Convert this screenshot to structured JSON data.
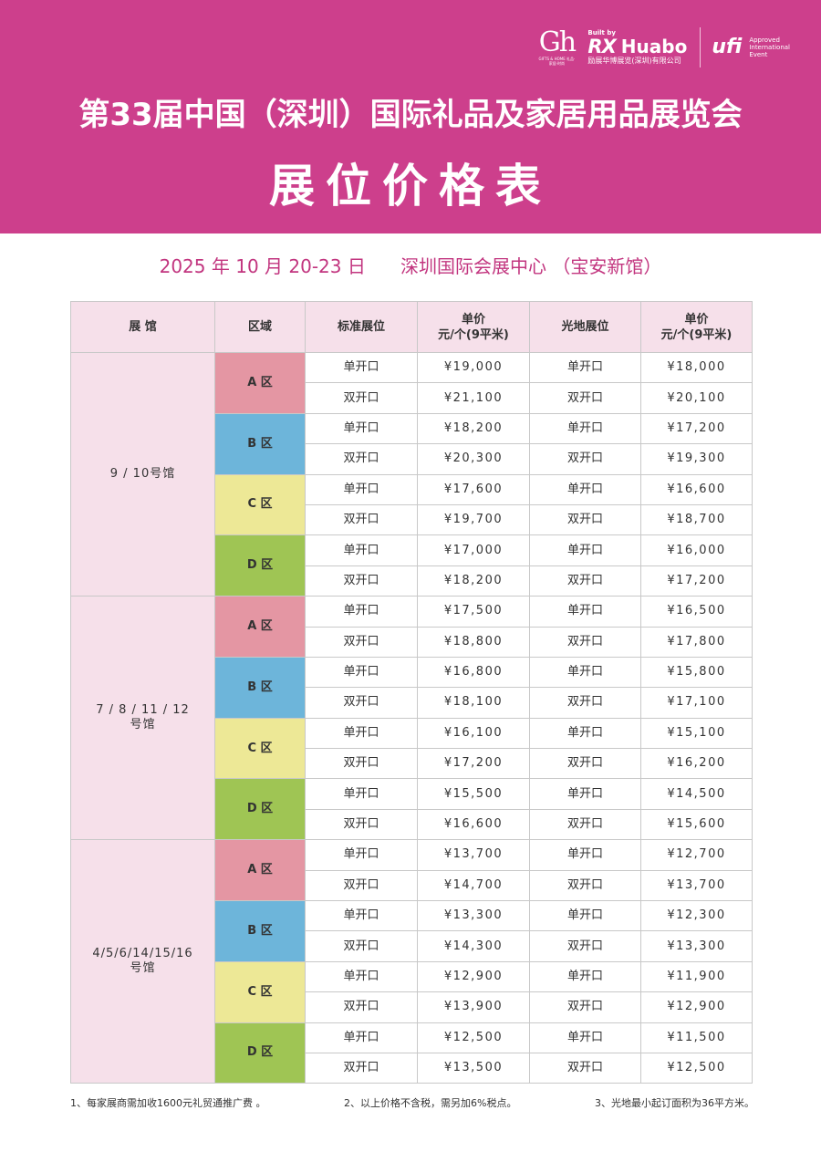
{
  "header": {
    "logo_gh": {
      "mark": "Gh",
      "small": "GIFTS & HOME 礼品·家居·时尚"
    },
    "logo_rx": {
      "built_by": "Built by",
      "rx": "RX",
      "huabo": "Huabo",
      "sub": "励展华博展览(深圳)有限公司"
    },
    "logo_ufi": {
      "mark": "ufi",
      "line1": "Approved",
      "line2": "International",
      "line3": "Event"
    },
    "title": "第33届中国（深圳）国际礼品及家居用品展览会",
    "subtitle": "展位价格表"
  },
  "info": {
    "date": "2025 年 10 月 20-23 日",
    "venue": "深圳国际会展中心 （宝安新馆）"
  },
  "table": {
    "headers": {
      "hall": "展 馆",
      "zone": "区域",
      "standard": "标准展位",
      "standard_price_line1": "单价",
      "standard_price_line2": "元/个(9平米)",
      "space": "光地展位",
      "space_price_line1": "单价",
      "space_price_line2": "元/个(9平米)"
    },
    "halls": [
      {
        "name_line1": "9 / 10号馆",
        "name_line2": "",
        "zones": [
          {
            "label": "A 区",
            "rows": [
              {
                "std": "单开口",
                "std_price": "¥19,000",
                "space": "单开口",
                "space_price": "¥18,000"
              },
              {
                "std": "双开口",
                "std_price": "¥21,100",
                "space": "双开口",
                "space_price": "¥20,100"
              }
            ]
          },
          {
            "label": "B 区",
            "rows": [
              {
                "std": "单开口",
                "std_price": "¥18,200",
                "space": "单开口",
                "space_price": "¥17,200"
              },
              {
                "std": "双开口",
                "std_price": "¥20,300",
                "space": "双开口",
                "space_price": "¥19,300"
              }
            ]
          },
          {
            "label": "C 区",
            "rows": [
              {
                "std": "单开口",
                "std_price": "¥17,600",
                "space": "单开口",
                "space_price": "¥16,600"
              },
              {
                "std": "双开口",
                "std_price": "¥19,700",
                "space": "双开口",
                "space_price": "¥18,700"
              }
            ]
          },
          {
            "label": "D 区",
            "rows": [
              {
                "std": "单开口",
                "std_price": "¥17,000",
                "space": "单开口",
                "space_price": "¥16,000"
              },
              {
                "std": "双开口",
                "std_price": "¥18,200",
                "space": "双开口",
                "space_price": "¥17,200"
              }
            ]
          }
        ]
      },
      {
        "name_line1": "7 / 8 / 11 / 12",
        "name_line2": "号馆",
        "zones": [
          {
            "label": "A 区",
            "rows": [
              {
                "std": "单开口",
                "std_price": "¥17,500",
                "space": "单开口",
                "space_price": "¥16,500"
              },
              {
                "std": "双开口",
                "std_price": "¥18,800",
                "space": "双开口",
                "space_price": "¥17,800"
              }
            ]
          },
          {
            "label": "B 区",
            "rows": [
              {
                "std": "单开口",
                "std_price": "¥16,800",
                "space": "单开口",
                "space_price": "¥15,800"
              },
              {
                "std": "双开口",
                "std_price": "¥18,100",
                "space": "双开口",
                "space_price": "¥17,100"
              }
            ]
          },
          {
            "label": "C 区",
            "rows": [
              {
                "std": "单开口",
                "std_price": "¥16,100",
                "space": "单开口",
                "space_price": "¥15,100"
              },
              {
                "std": "双开口",
                "std_price": "¥17,200",
                "space": "双开口",
                "space_price": "¥16,200"
              }
            ]
          },
          {
            "label": "D 区",
            "rows": [
              {
                "std": "单开口",
                "std_price": "¥15,500",
                "space": "单开口",
                "space_price": "¥14,500"
              },
              {
                "std": "双开口",
                "std_price": "¥16,600",
                "space": "双开口",
                "space_price": "¥15,600"
              }
            ]
          }
        ]
      },
      {
        "name_line1": "4/5/6/14/15/16",
        "name_line2": "号馆",
        "zones": [
          {
            "label": "A 区",
            "rows": [
              {
                "std": "单开口",
                "std_price": "¥13,700",
                "space": "单开口",
                "space_price": "¥12,700"
              },
              {
                "std": "双开口",
                "std_price": "¥14,700",
                "space": "双开口",
                "space_price": "¥13,700"
              }
            ]
          },
          {
            "label": "B 区",
            "rows": [
              {
                "std": "单开口",
                "std_price": "¥13,300",
                "space": "单开口",
                "space_price": "¥12,300"
              },
              {
                "std": "双开口",
                "std_price": "¥14,300",
                "space": "双开口",
                "space_price": "¥13,300"
              }
            ]
          },
          {
            "label": "C 区",
            "rows": [
              {
                "std": "单开口",
                "std_price": "¥12,900",
                "space": "单开口",
                "space_price": "¥11,900"
              },
              {
                "std": "双开口",
                "std_price": "¥13,900",
                "space": "双开口",
                "space_price": "¥12,900"
              }
            ]
          },
          {
            "label": "D 区",
            "rows": [
              {
                "std": "单开口",
                "std_price": "¥12,500",
                "space": "单开口",
                "space_price": "¥11,500"
              },
              {
                "std": "双开口",
                "std_price": "¥13,500",
                "space": "双开口",
                "space_price": "¥12,500"
              }
            ]
          }
        ]
      }
    ]
  },
  "notes": [
    "1、每家展商需加收1600元礼贸通推广费 。",
    "2、以上价格不含税，需另加6%税点。",
    "3、光地最小起订面积为36平方米。"
  ],
  "colors": {
    "header_bg": "#cd3f8c",
    "accent_text": "#c2357f",
    "hall_bg": "#f6e0ea",
    "zone_a": "#e496a3",
    "zone_b": "#6db5da",
    "zone_c": "#ede896",
    "zone_d": "#9fc554"
  }
}
